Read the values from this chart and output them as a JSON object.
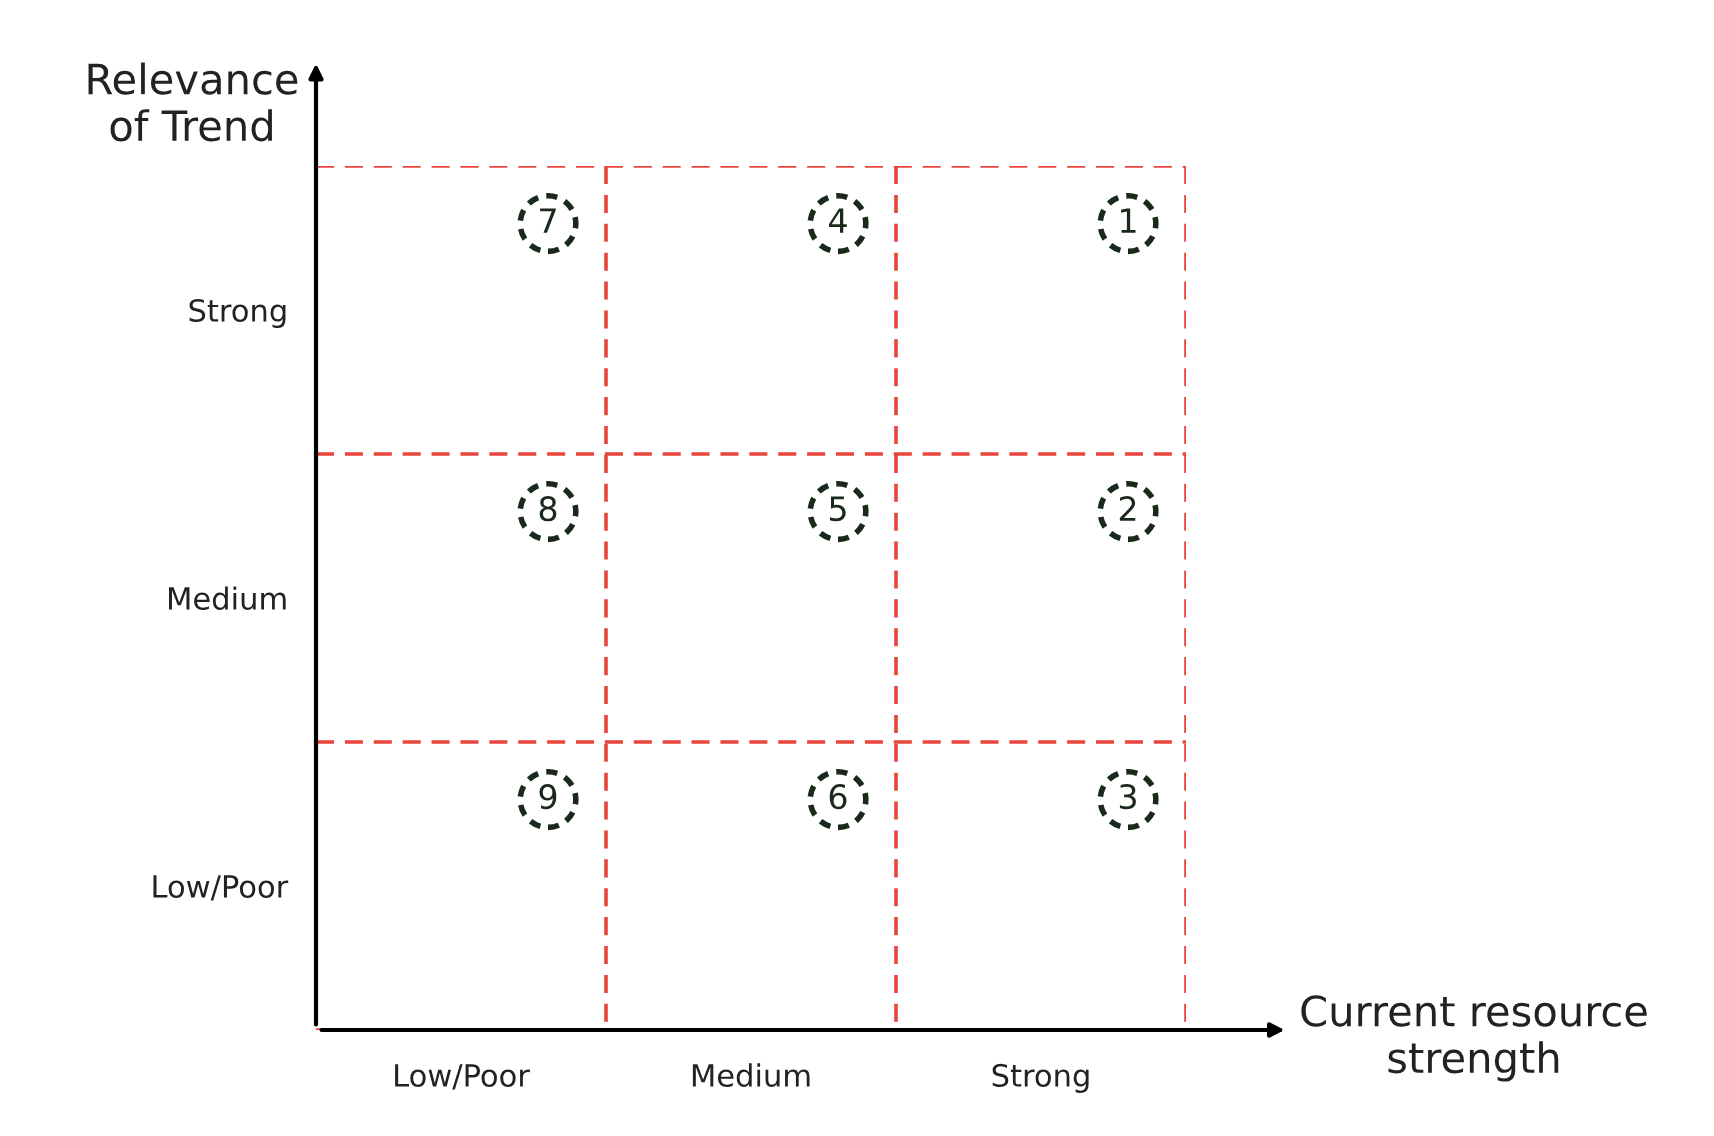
{
  "chart_data": {
    "type": "heatmap",
    "xlabel": "Current resource\nstrength",
    "ylabel": "Relevance\nof Trend",
    "categories": [
      "Low/Poor",
      "Medium",
      "Strong"
    ],
    "y_categories": [
      "Strong",
      "Medium",
      "Low/Poor"
    ],
    "cells": [
      [
        7,
        4,
        1
      ],
      [
        8,
        5,
        2
      ],
      [
        9,
        6,
        3
      ]
    ],
    "data_labels": true
  }
}
